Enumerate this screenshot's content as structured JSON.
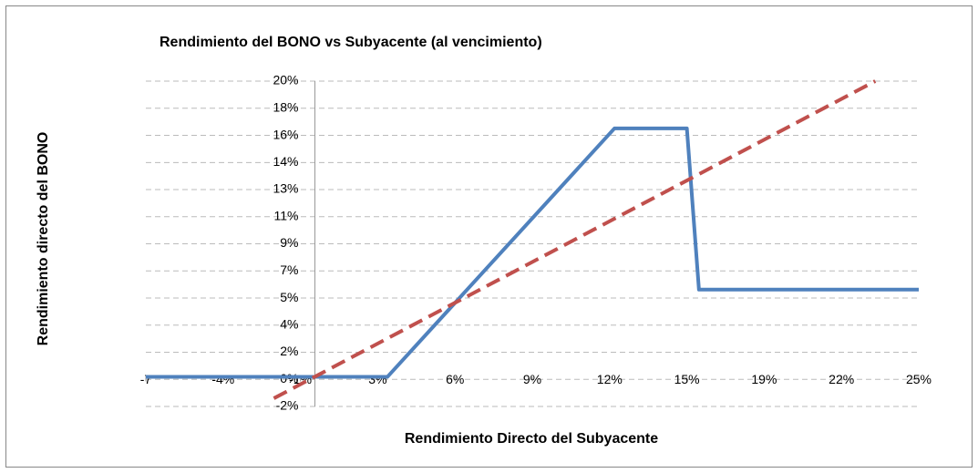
{
  "chart_data": {
    "type": "line",
    "title": "Rendimiento del BONO vs Subyacente (al vencimiento)",
    "x_label": "Rendimiento Directo del Subyacente",
    "y_label": "Rendimiento directo del BONO",
    "series": [
      {
        "color": "#4f81bd",
        "dash": false,
        "x": [
          -7,
          3,
          12.4,
          15.4,
          15.9,
          25
        ],
        "values": [
          0,
          0,
          16.8,
          16.8,
          5.9,
          5.9
        ]
      },
      {
        "color": "#c0504d",
        "dash": true,
        "x": [
          -1.7,
          23.2
        ],
        "values": [
          -1.45,
          20
        ]
      }
    ],
    "xlim": [
      -7,
      25
    ],
    "xticks": [
      -7,
      {
        "value": -3.8,
        "label": "-4%"
      },
      {
        "value": -0.6,
        "label": "-1%"
      },
      {
        "value": 2.6,
        "label": "3%"
      },
      {
        "value": 5.8,
        "label": "6%"
      },
      {
        "value": 9,
        "label": "9%"
      },
      {
        "value": 12.2,
        "label": "12%"
      },
      {
        "value": 15.4,
        "label": "15%"
      },
      {
        "value": 18.6,
        "label": "19%"
      },
      {
        "value": 21.8,
        "label": "22%"
      },
      {
        "value": 25,
        "label": "25%"
      }
    ],
    "ylim": [
      -2,
      20
    ],
    "yticks": [
      {
        "value": -2,
        "label": "-2%"
      },
      {
        "value": -0.17,
        "label": "0%"
      },
      {
        "value": 1.67,
        "label": "2%"
      },
      {
        "value": 3.5,
        "label": "4%"
      },
      {
        "value": 5.33,
        "label": "5%"
      },
      {
        "value": 7.17,
        "label": "7%"
      },
      {
        "value": 9,
        "label": "9%"
      },
      {
        "value": 10.83,
        "label": "11%"
      },
      {
        "value": 12.67,
        "label": "13%"
      },
      {
        "value": 14.49,
        "label": "14%"
      },
      {
        "value": 16.33,
        "label": "16%"
      },
      {
        "value": 18.17,
        "label": "18%"
      },
      {
        "value": 20,
        "label": "20%"
      }
    ],
    "grid": true
  }
}
